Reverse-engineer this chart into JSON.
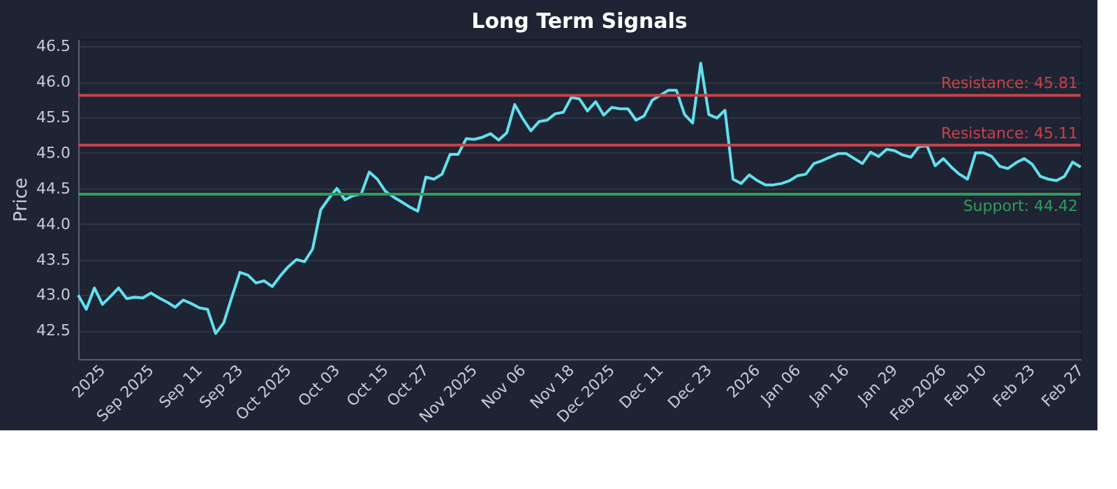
{
  "chart_data": {
    "type": "line",
    "title": "Long Term Signals",
    "ylabel": "Price",
    "categories": [
      null,
      null,
      null,
      "2025",
      null,
      null,
      null,
      null,
      null,
      "Sep 2025",
      null,
      null,
      null,
      null,
      null,
      "Sep 11",
      null,
      null,
      null,
      null,
      "Sep 23",
      null,
      null,
      null,
      null,
      null,
      "Oct 2025",
      null,
      null,
      null,
      null,
      null,
      "Oct 03",
      null,
      null,
      null,
      null,
      null,
      "Oct 15",
      null,
      null,
      null,
      null,
      "Oct 27",
      null,
      null,
      null,
      null,
      null,
      "Nov 2025",
      null,
      null,
      null,
      null,
      null,
      "Nov 06",
      null,
      null,
      null,
      null,
      null,
      "Nov 18",
      null,
      null,
      null,
      null,
      "Dec 2025",
      null,
      null,
      null,
      null,
      null,
      "Dec 11",
      null,
      null,
      null,
      null,
      null,
      "Dec 23",
      null,
      null,
      null,
      null,
      null,
      "2026",
      null,
      null,
      null,
      null,
      "Jan 06",
      null,
      null,
      null,
      null,
      null,
      "Jan 16",
      null,
      null,
      null,
      null,
      null,
      "Jan 29",
      null,
      null,
      null,
      null,
      null,
      "Feb 2026",
      null,
      null,
      null,
      null,
      "Feb 10",
      null,
      null,
      null,
      null,
      null,
      "Feb 23",
      null,
      null,
      null,
      null,
      null,
      "Feb 27"
    ],
    "series": [
      {
        "color": "#62e0ee",
        "values": [
          43.0,
          42.8,
          43.1,
          42.87,
          42.98,
          43.1,
          42.95,
          42.97,
          42.96,
          43.03,
          42.96,
          42.9,
          42.83,
          42.93,
          42.88,
          42.82,
          42.8,
          42.46,
          42.61,
          42.97,
          43.32,
          43.28,
          43.17,
          43.2,
          43.12,
          43.27,
          43.4,
          43.5,
          43.47,
          43.65,
          44.2,
          44.36,
          44.5,
          44.34,
          44.4,
          44.42,
          44.73,
          44.63,
          44.46,
          44.38,
          44.31,
          44.24,
          44.18,
          44.66,
          44.63,
          44.7,
          44.98,
          44.98,
          45.2,
          45.19,
          45.22,
          45.27,
          45.18,
          45.28,
          45.68,
          45.48,
          45.31,
          45.44,
          45.46,
          45.55,
          45.57,
          45.78,
          45.76,
          45.59,
          45.72,
          45.53,
          45.64,
          45.62,
          45.62,
          45.46,
          45.52,
          45.74,
          45.81,
          45.88,
          45.88,
          45.54,
          45.42,
          46.26,
          45.54,
          45.49,
          45.6,
          44.63,
          44.57,
          44.69,
          44.61,
          44.55,
          44.55,
          44.57,
          44.61,
          44.68,
          44.7,
          44.85,
          44.89,
          44.94,
          44.99,
          44.99,
          44.92,
          44.85,
          45.01,
          44.95,
          45.05,
          45.03,
          44.97,
          44.94,
          45.09,
          45.1,
          44.82,
          44.92,
          44.8,
          44.7,
          44.63,
          45.0,
          45.0,
          44.95,
          44.81,
          44.78,
          44.86,
          44.92,
          44.84,
          44.67,
          44.63,
          44.61,
          44.67,
          44.87,
          44.8
        ]
      }
    ],
    "ylim": [
      42.1,
      46.6
    ],
    "yticks": [
      42.5,
      {
        "value": 43,
        "label": "43.0"
      },
      43.5,
      {
        "value": 44,
        "label": "44.0"
      },
      44.5,
      {
        "value": 45,
        "label": "45.0"
      },
      45.5,
      {
        "value": 46,
        "label": "46.0"
      },
      46.5
    ],
    "ref_lines": [
      {
        "axis": "y",
        "value": 45.81,
        "label": "Resistance: 45.81",
        "color": "#c9424b"
      },
      {
        "axis": "y",
        "value": 45.11,
        "label": "Resistance: 45.11",
        "color": "#c9424b"
      },
      {
        "axis": "y",
        "value": 44.42,
        "label": "Support: 44.42",
        "color": "#2f9d5a"
      }
    ],
    "grid": "y",
    "marker": "none",
    "line_style": "solid"
  }
}
